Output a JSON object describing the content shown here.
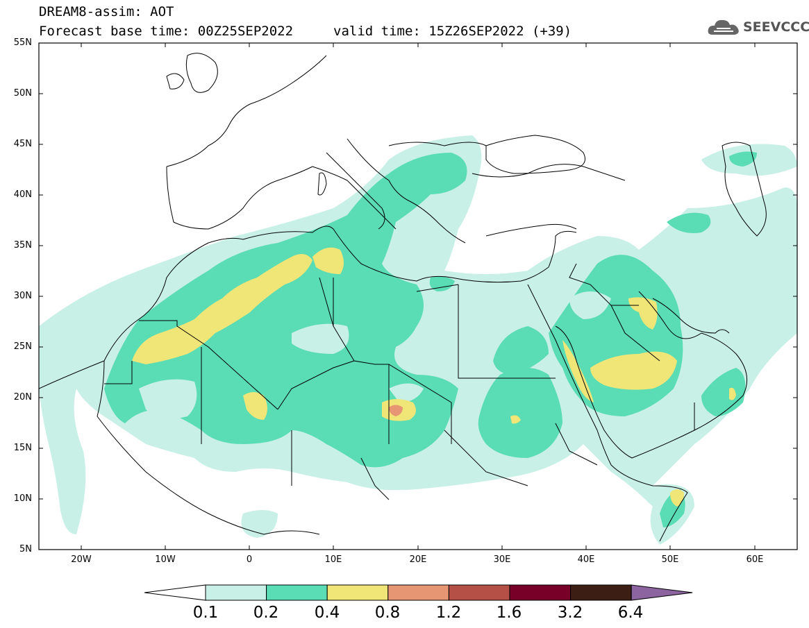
{
  "header": {
    "title": "DREAM8-assim: AOT",
    "base_time": "Forecast base time: 00Z25SEP2022",
    "valid_time": "valid time: 15Z26SEP2022 (+39)"
  },
  "logo": {
    "text": "SEEVCCC",
    "icon": "cloud-icon"
  },
  "map": {
    "region": "North Africa, Middle East and Southern Europe",
    "variable": "AOT",
    "lat_labels": [
      "55N",
      "50N",
      "45N",
      "40N",
      "35N",
      "30N",
      "25N",
      "20N",
      "15N",
      "10N",
      "5N"
    ],
    "lon_labels": [
      "20W",
      "10W",
      "0",
      "10E",
      "20E",
      "30E",
      "40E",
      "50E",
      "60E"
    ],
    "lon_range": [
      -25,
      65
    ],
    "lat_range": [
      5,
      55
    ]
  },
  "colorbar": {
    "labels": [
      "0.1",
      "0.2",
      "0.4",
      "0.8",
      "1.2",
      "1.6",
      "3.2",
      "6.4"
    ],
    "colors": [
      "#ffffff",
      "#c8f0e6",
      "#5adcb4",
      "#f0e678",
      "#e69672",
      "#b45046",
      "#780028",
      "#3c1e14",
      "#8c64a0"
    ]
  },
  "colors": {
    "level_0_1": "#c8f0e6",
    "level_0_2": "#5adcb4",
    "level_0_4": "#f0e678",
    "level_0_8": "#e69672"
  }
}
